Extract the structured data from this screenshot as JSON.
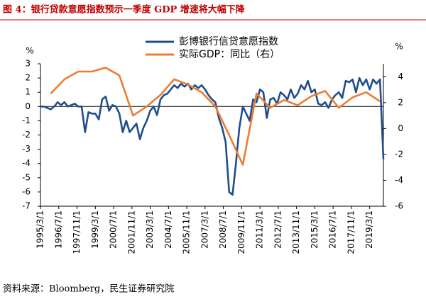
{
  "chart_data": {
    "type": "line",
    "title": "图 4：银行贷款意愿指数预示一季度 GDP 增速将大幅下降",
    "source": "资料来源：Bloomberg，民生证券研究院",
    "y_unit": "%",
    "y2_unit": "%",
    "xlim": [
      "1995/3/1",
      "2020/3/1"
    ],
    "xticks": [
      "1995/3/1",
      "1996/7/1",
      "1997/11/1",
      "1999/3/1",
      "2000/7/1",
      "2001/11/1",
      "2003/3/1",
      "2004/7/1",
      "2005/11/1",
      "2007/3/1",
      "2008/7/1",
      "2009/11/1",
      "2011/3/1",
      "2012/7/1",
      "2013/11/1",
      "2015/3/1",
      "2016/7/1",
      "2017/11/1",
      "2019/3/1"
    ],
    "ylim": [
      -7,
      3
    ],
    "yticks": [
      -7,
      -6,
      -5,
      -4,
      -3,
      -2,
      -1,
      0,
      1,
      2,
      3
    ],
    "y2lim": [
      -6,
      5
    ],
    "y2ticks": [
      -6,
      -4,
      -2,
      0,
      2,
      4
    ],
    "series": [
      {
        "name": "彭博银行信贷意愿指数",
        "color": "#1f4e8c",
        "axis": "y",
        "x": [
          "1995/3/1",
          "1995/6/1",
          "1995/9/1",
          "1995/12/1",
          "1996/3/1",
          "1996/6/1",
          "1996/9/1",
          "1996/12/1",
          "1997/3/1",
          "1997/6/1",
          "1997/9/1",
          "1997/12/1",
          "1998/3/1",
          "1998/6/1",
          "1998/9/1",
          "1998/12/1",
          "1999/3/1",
          "1999/6/1",
          "1999/9/1",
          "1999/12/1",
          "2000/3/1",
          "2000/6/1",
          "2000/9/1",
          "2000/12/1",
          "2001/3/1",
          "2001/6/1",
          "2001/9/1",
          "2001/12/1",
          "2002/3/1",
          "2002/6/1",
          "2002/9/1",
          "2002/12/1",
          "2003/3/1",
          "2003/6/1",
          "2003/9/1",
          "2003/12/1",
          "2004/3/1",
          "2004/6/1",
          "2004/9/1",
          "2004/12/1",
          "2005/3/1",
          "2005/6/1",
          "2005/9/1",
          "2005/12/1",
          "2006/3/1",
          "2006/6/1",
          "2006/9/1",
          "2006/12/1",
          "2007/3/1",
          "2007/6/1",
          "2007/9/1",
          "2007/12/1",
          "2008/3/1",
          "2008/6/1",
          "2008/9/1",
          "2008/12/1",
          "2009/3/1",
          "2009/6/1",
          "2009/9/1",
          "2009/12/1",
          "2010/3/1",
          "2010/6/1",
          "2010/9/1",
          "2010/12/1",
          "2011/3/1",
          "2011/6/1",
          "2011/9/1",
          "2011/12/1",
          "2012/3/1",
          "2012/6/1",
          "2012/9/1",
          "2012/12/1",
          "2013/3/1",
          "2013/6/1",
          "2013/9/1",
          "2013/12/1",
          "2014/3/1",
          "2014/6/1",
          "2014/9/1",
          "2014/12/1",
          "2015/3/1",
          "2015/6/1",
          "2015/9/1",
          "2015/12/1",
          "2016/3/1",
          "2016/6/1",
          "2016/9/1",
          "2016/12/1",
          "2017/3/1",
          "2017/6/1",
          "2017/9/1",
          "2017/12/1",
          "2018/3/1",
          "2018/6/1",
          "2018/9/1",
          "2018/12/1",
          "2019/3/1",
          "2019/6/1",
          "2019/9/1",
          "2019/12/1",
          "2020/3/1"
        ],
        "values": [
          0,
          0,
          -0.1,
          -0.2,
          0,
          0.3,
          0.1,
          0.3,
          0,
          0.1,
          0.2,
          0,
          0,
          -1.8,
          -0.4,
          -0.5,
          -0.5,
          -0.9,
          0.5,
          0.7,
          -0.3,
          0.1,
          0,
          -0.5,
          -1.8,
          -1.0,
          -1.8,
          -1.5,
          -1.2,
          -2.3,
          -1.5,
          -1.0,
          -0.3,
          0,
          -0.6,
          0.5,
          0.8,
          0.9,
          1.2,
          1.5,
          1.3,
          1.6,
          1.4,
          1.6,
          1.2,
          1.5,
          1.3,
          1.5,
          1.2,
          0.8,
          0.5,
          0.3,
          -0.8,
          -1.5,
          -2.5,
          -6.0,
          -6.2,
          -4.0,
          -1.5,
          0,
          -0.5,
          -1.0,
          0.5,
          0.3,
          1.2,
          1.0,
          -0.8,
          0.5,
          0.6,
          0.2,
          1.0,
          0.8,
          0.5,
          1.2,
          0.6,
          0.9,
          1.5,
          1.2,
          1.8,
          1.0,
          1.2,
          0.2,
          0.1,
          0.3,
          -0.1,
          0.5,
          0.8,
          1.0,
          0.6,
          1.8,
          1.7,
          1.9,
          1.0,
          2.0,
          1.5,
          1.9,
          1.2,
          1.9,
          1.6,
          1.9,
          -3.7
        ]
      },
      {
        "name": "实际GDP：同比（右）",
        "color": "#ed7d31",
        "axis": "y2",
        "x": [
          "1995/12/1",
          "1996/12/1",
          "1997/12/1",
          "1998/12/1",
          "1999/12/1",
          "2000/12/1",
          "2001/12/1",
          "2002/12/1",
          "2003/12/1",
          "2004/12/1",
          "2005/12/1",
          "2006/12/1",
          "2007/12/1",
          "2008/12/1",
          "2009/12/1",
          "2010/12/1",
          "2011/12/1",
          "2012/12/1",
          "2013/12/1",
          "2014/12/1",
          "2015/12/1",
          "2016/12/1",
          "2017/12/1",
          "2018/12/1",
          "2019/12/1"
        ],
        "values": [
          2.7,
          3.8,
          4.4,
          4.4,
          4.7,
          4.1,
          1.0,
          1.7,
          2.6,
          3.8,
          3.4,
          2.8,
          1.7,
          -0.5,
          -2.8,
          2.7,
          1.6,
          2.2,
          1.8,
          2.5,
          2.9,
          1.6,
          2.4,
          2.8,
          2.1
        ]
      }
    ]
  }
}
